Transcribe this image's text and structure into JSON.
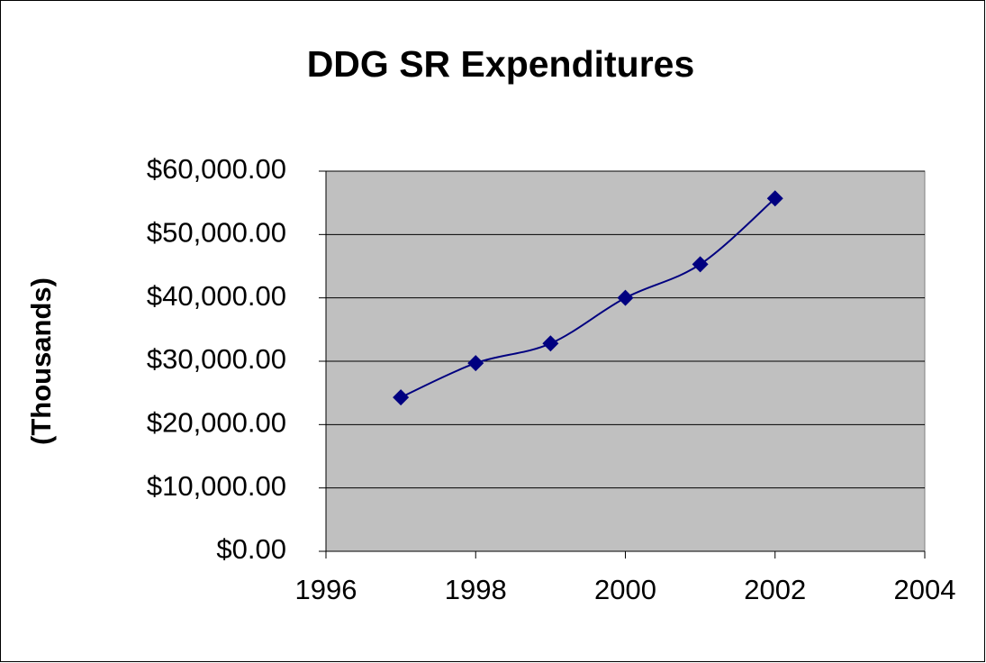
{
  "chart_data": {
    "type": "line",
    "title": "DDG SR Expenditures",
    "y_label": "(Thousands)",
    "x": [
      1997,
      1998,
      1999,
      2000,
      2001,
      2002
    ],
    "series": [
      {
        "name": "DDG SR Expenditures",
        "color": "#000080",
        "values": [
          24300,
          29700,
          32800,
          40000,
          45300,
          55700
        ]
      }
    ],
    "xlim": [
      1996,
      2004
    ],
    "xticks": [
      1996,
      1998,
      2000,
      2002,
      2004
    ],
    "ylim": [
      0,
      60000
    ],
    "yticks": [
      {
        "value": 0,
        "label": "$0.00"
      },
      {
        "value": 10000,
        "label": "$10,000.00"
      },
      {
        "value": 20000,
        "label": "$20,000.00"
      },
      {
        "value": 30000,
        "label": "$30,000.00"
      },
      {
        "value": 40000,
        "label": "$40,000.00"
      },
      {
        "value": 50000,
        "label": "$50,000.00"
      },
      {
        "value": 60000,
        "label": "$60,000.00"
      }
    ],
    "grid": true,
    "plot_background": "#c0c0c0"
  }
}
